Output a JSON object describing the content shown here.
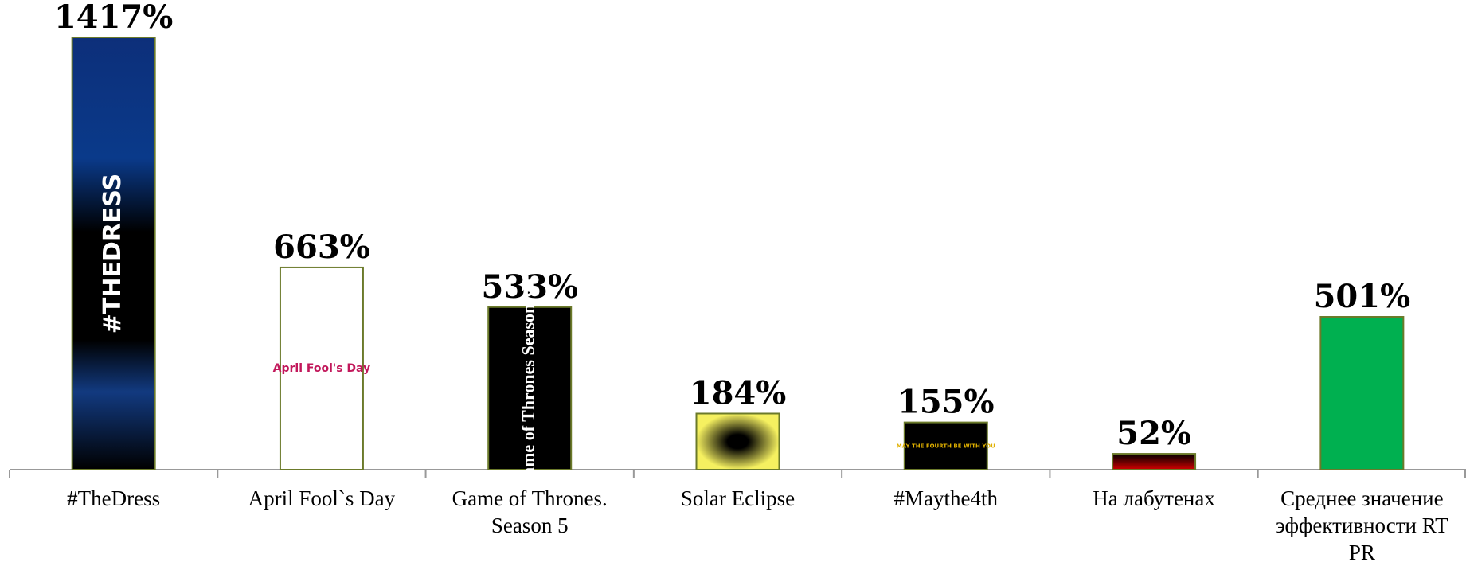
{
  "chart_data": {
    "type": "bar",
    "categories": [
      "#TheDress",
      "April Fool`s Day",
      "Game of Thrones. Season 5",
      "Solar Eclipse",
      "#Maythe4th",
      "На лабутенах",
      "Среднее значение эффективности RT PR"
    ],
    "values": [
      1417,
      663,
      533,
      184,
      155,
      52,
      501
    ],
    "value_labels": [
      "1417%",
      "663%",
      "533%",
      "184%",
      "155%",
      "52%",
      "501%"
    ],
    "colors": [
      "#0a2a6b",
      "#ffffff",
      "#000000",
      "#f5f060",
      "#000000",
      "#c00000",
      "#00b050"
    ],
    "bar_texts": [
      "#THEDRESS",
      "April Fool's Day",
      "Game of Thrones Season V",
      null,
      "MAY THE FOURTH BE WITH YOU",
      null,
      null
    ]
  }
}
